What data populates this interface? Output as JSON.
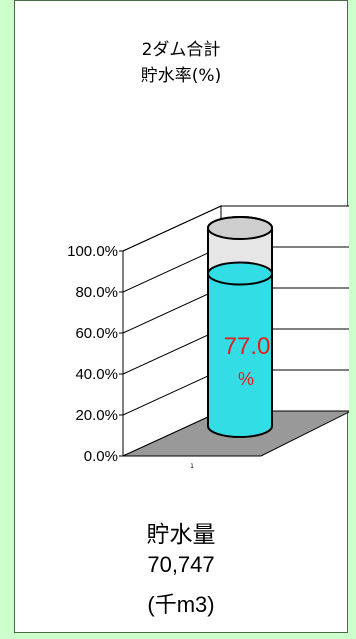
{
  "title": {
    "line1": "2ダム合計",
    "line2": "貯水率(%)"
  },
  "chart_data": {
    "type": "bar",
    "style": "3d-cylinder",
    "categories": [
      "1"
    ],
    "values": [
      77.0
    ],
    "value_unit": "%",
    "ylim": [
      0,
      100
    ],
    "yticks": [
      "100.0%",
      "80.0%",
      "60.0%",
      "40.0%",
      "20.0%",
      "0.0%"
    ],
    "ytick_values": [
      100,
      80,
      60,
      40,
      20,
      0
    ],
    "grid": true,
    "data_label": {
      "value": "77.0",
      "unit": "%",
      "color": "#e0201f"
    },
    "colors": {
      "fill": "#33dde6",
      "empty": "#e6e6e6",
      "floor": "#999999",
      "grid": "#000000"
    }
  },
  "footer": {
    "label": "貯水量",
    "value": "70,747",
    "unit": "(千m3)"
  },
  "colors": {
    "page_background": "#ccffcc",
    "panel_background": "#ffffff"
  }
}
